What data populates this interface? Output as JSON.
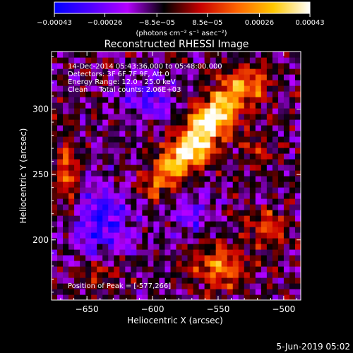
{
  "chart_data": {
    "type": "heatmap",
    "title": "Reconstructed RHESSI Image",
    "xlabel": "Heliocentric X (arcsec)",
    "ylabel": "Heliocentric Y (arcsec)",
    "xlim": [
      -677,
      -487
    ],
    "ylim": [
      154,
      344
    ],
    "x_ticks": [
      -650,
      -600,
      -550,
      -500
    ],
    "x_tick_labels": [
      "−650",
      "−600",
      "−550",
      "−500"
    ],
    "y_ticks": [
      200,
      250,
      300
    ],
    "y_tick_labels": [
      "200",
      "250",
      "300"
    ],
    "colorbar": {
      "min": -0.00043,
      "max": 0.00043,
      "ticks": [
        -0.00043,
        -0.00026,
        -8.5e-05,
        8.5e-05,
        0.00026,
        0.00043
      ],
      "tick_labels": [
        "−0.00043",
        "−0.00026",
        "−8.5e−05",
        "8.5e−05",
        "0.00026",
        "0.00043"
      ],
      "units_label": "(photons cm⁻² s⁻¹ asec⁻²)",
      "colormap": [
        "#0000ff",
        "#5000ff",
        "#b400ff",
        "#000000",
        "#c80000",
        "#ff6400",
        "#ffc800",
        "#ffffff"
      ]
    },
    "annotations": [
      "14-Dec-2014 05:43:36.000 to 05:48:00.000",
      "Detectors: 3F 6F 7F 9F, Att 0",
      "Energy Range: 12.0 - 25.0 keV",
      "Clean     Total counts: 2.06E+03"
    ],
    "peak_label": "Position of Peak = [-577,266]",
    "peak": {
      "x": -577,
      "y": 266
    },
    "sources": [
      {
        "x": -570,
        "y": 270,
        "sx": 12,
        "sy": 9,
        "amp": 1.0
      },
      {
        "x": -560,
        "y": 288,
        "sx": 10,
        "sy": 9,
        "amp": 0.85
      },
      {
        "x": -585,
        "y": 255,
        "sx": 9,
        "sy": 8,
        "amp": 0.7
      },
      {
        "x": -548,
        "y": 300,
        "sx": 11,
        "sy": 10,
        "amp": 0.75
      },
      {
        "x": -530,
        "y": 318,
        "sx": 12,
        "sy": 10,
        "amp": 0.7
      },
      {
        "x": -600,
        "y": 240,
        "sx": 8,
        "sy": 8,
        "amp": 0.45
      },
      {
        "x": -665,
        "y": 248,
        "sx": 6,
        "sy": 22,
        "amp": 0.55
      },
      {
        "x": -550,
        "y": 180,
        "sx": 14,
        "sy": 12,
        "amp": 0.6
      },
      {
        "x": -512,
        "y": 210,
        "sx": 10,
        "sy": 10,
        "amp": 0.45
      },
      {
        "x": -520,
        "y": 268,
        "sx": 8,
        "sy": 8,
        "amp": 0.35
      },
      {
        "x": -640,
        "y": 175,
        "sx": 10,
        "sy": 8,
        "amp": 0.3
      }
    ],
    "negative_regions": [
      {
        "x": -640,
        "y": 215,
        "sx": 18,
        "sy": 18,
        "amp": 0.55
      },
      {
        "x": -605,
        "y": 310,
        "sx": 14,
        "sy": 12,
        "amp": 0.45
      },
      {
        "x": -570,
        "y": 218,
        "sx": 12,
        "sy": 12,
        "amp": 0.35
      }
    ]
  },
  "footer": {
    "date": "5-Jun-2019 05:02"
  }
}
